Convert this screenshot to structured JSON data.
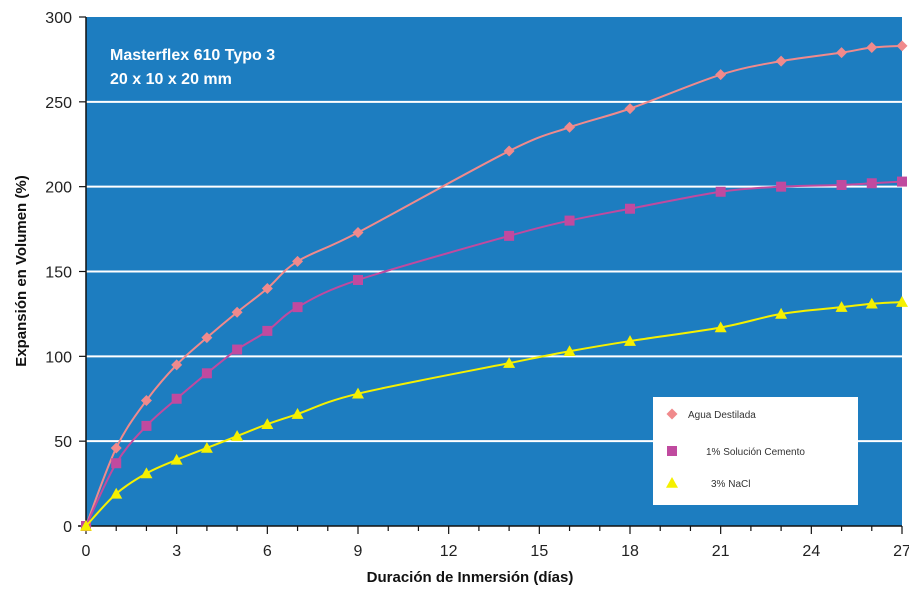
{
  "chart_data": {
    "type": "line",
    "title": "Masterflex 610 Typo 3",
    "subtitle": "20 x 10 x 20 mm",
    "xlabel": "Duración de Inmersión (días)",
    "ylabel": "Expansión en Volumen (%)",
    "xlim": [
      0,
      27
    ],
    "ylim": [
      0,
      300
    ],
    "xticks": [
      0,
      3,
      6,
      9,
      12,
      15,
      18,
      21,
      24,
      27
    ],
    "yticks": [
      0,
      50,
      100,
      150,
      200,
      250,
      300
    ],
    "grid": "horizontal",
    "legend_position": "bottom-right",
    "plot_background": "#1d7dc0",
    "series": [
      {
        "name": "Agua Destilada",
        "marker": "diamond",
        "color": "#f08a8c",
        "x": [
          0,
          1,
          2,
          3,
          4,
          5,
          6,
          7,
          9,
          14,
          16,
          18,
          21,
          23,
          25,
          26,
          27
        ],
        "y": [
          0,
          46,
          74,
          95,
          111,
          126,
          140,
          156,
          173,
          221,
          235,
          246,
          266,
          274,
          279,
          282,
          283
        ]
      },
      {
        "name": "1% Solución Cemento",
        "marker": "square",
        "color": "#c04a9f",
        "x": [
          0,
          1,
          2,
          3,
          4,
          5,
          6,
          7,
          9,
          14,
          16,
          18,
          21,
          23,
          25,
          26,
          27
        ],
        "y": [
          0,
          37,
          59,
          75,
          90,
          104,
          115,
          129,
          145,
          171,
          180,
          187,
          197,
          200,
          201,
          202,
          203
        ]
      },
      {
        "name": "3% NaCl",
        "marker": "triangle",
        "color": "#f5f000",
        "x": [
          0,
          1,
          2,
          3,
          4,
          5,
          6,
          7,
          9,
          14,
          16,
          18,
          21,
          23,
          25,
          26,
          27
        ],
        "y": [
          0,
          19,
          31,
          39,
          46,
          53,
          60,
          66,
          78,
          96,
          103,
          109,
          117,
          125,
          129,
          131,
          132
        ]
      }
    ]
  }
}
